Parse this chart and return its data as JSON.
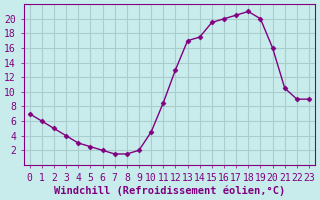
{
  "x": [
    0,
    1,
    2,
    3,
    4,
    5,
    6,
    7,
    8,
    9,
    10,
    11,
    12,
    13,
    14,
    15,
    16,
    17,
    18,
    19,
    20,
    21,
    22,
    23
  ],
  "y": [
    7,
    6,
    5,
    4,
    3,
    2.5,
    2,
    1.5,
    1.5,
    2,
    4.5,
    8.5,
    13,
    17,
    17.5,
    19.5,
    20,
    20.5,
    21,
    20,
    16,
    10.5,
    9,
    9
  ],
  "line_color": "#800080",
  "marker": "D",
  "marker_size": 2.5,
  "bg_color": "#c8ecec",
  "grid_color": "#aacccc",
  "axis_color": "#800080",
  "xlabel": "Windchill (Refroidissement éolien,°C)",
  "xlim": [
    -0.5,
    23.5
  ],
  "ylim": [
    0,
    22
  ],
  "yticks": [
    2,
    4,
    6,
    8,
    10,
    12,
    14,
    16,
    18,
    20
  ],
  "xticks": [
    0,
    1,
    2,
    3,
    4,
    5,
    6,
    7,
    8,
    9,
    10,
    11,
    12,
    13,
    14,
    15,
    16,
    17,
    18,
    19,
    20,
    21,
    22,
    23
  ],
  "font_size": 7,
  "label_font_size": 7.5
}
